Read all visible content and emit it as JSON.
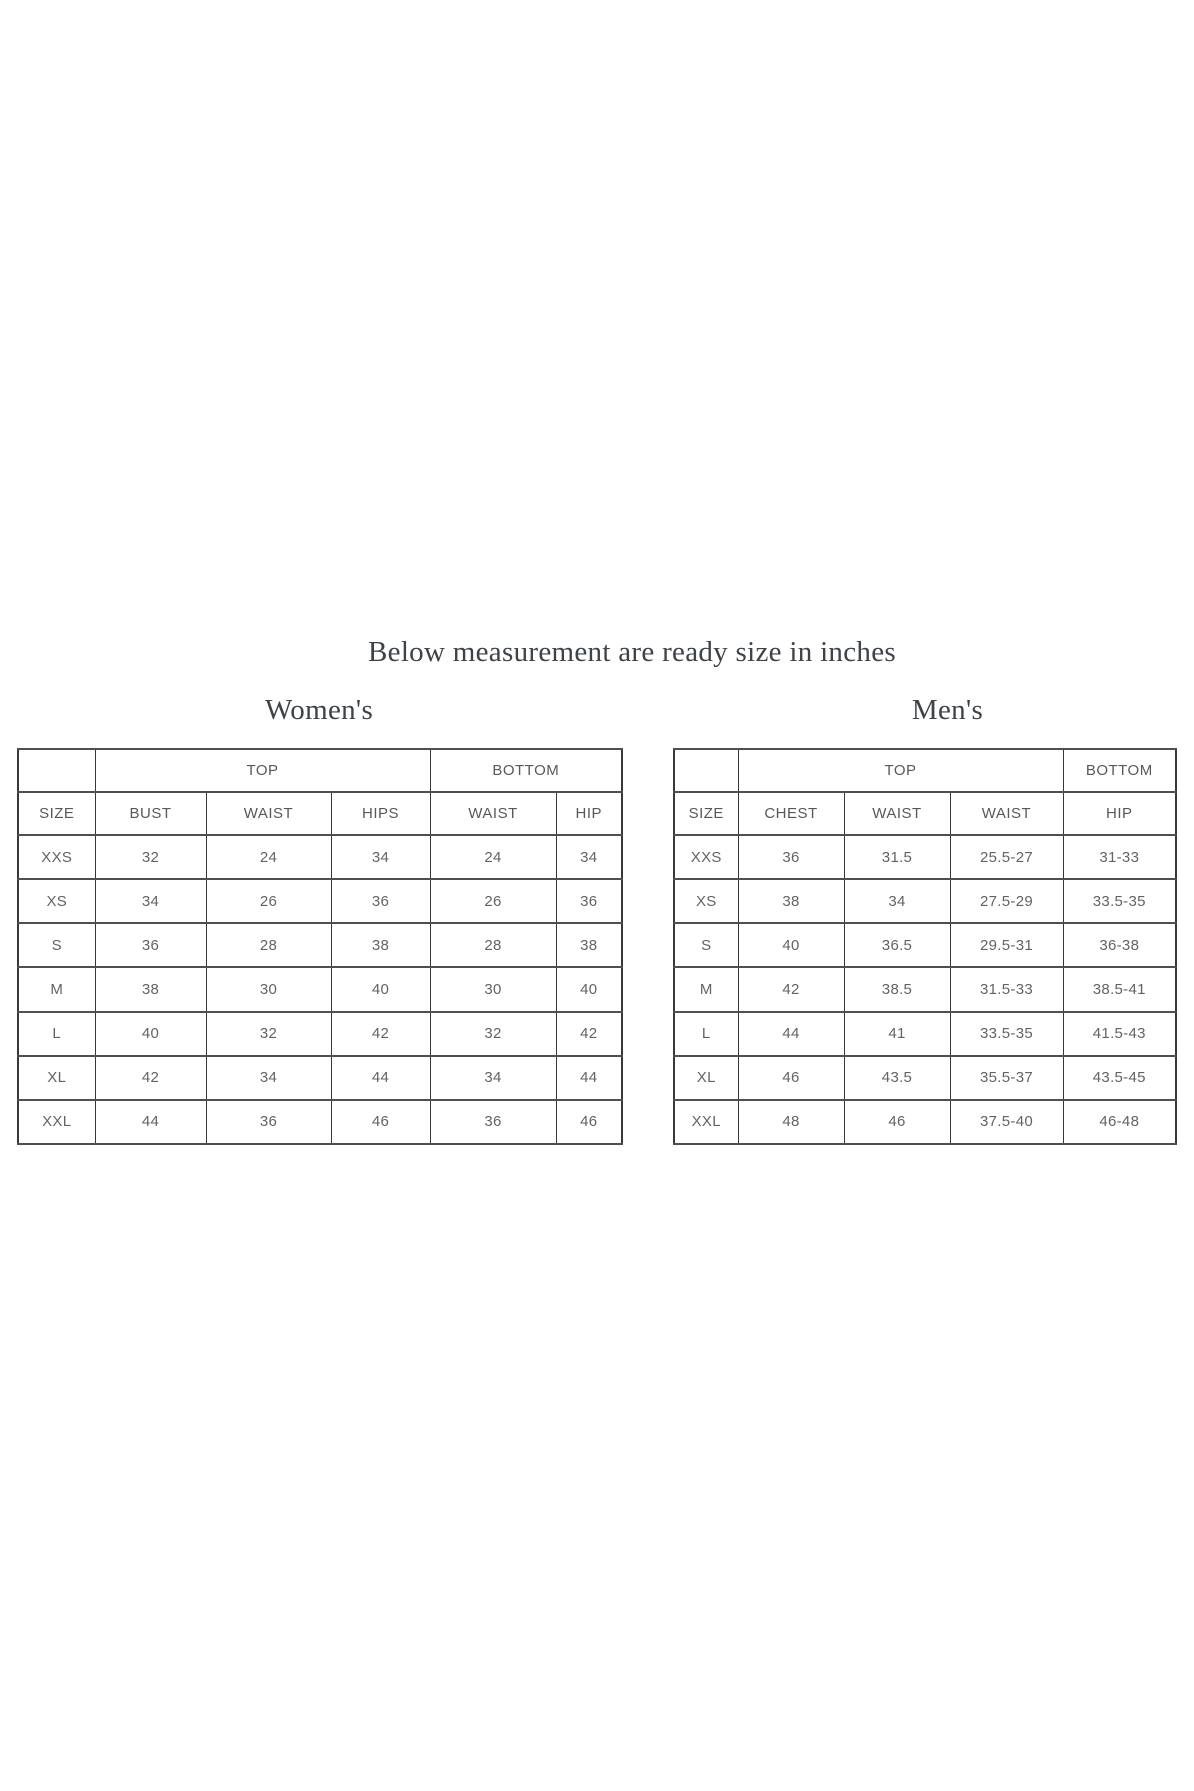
{
  "page": {
    "title": "Below measurement are ready size in inches"
  },
  "colors": {
    "background": "#ffffff",
    "heading_text": "#3d4348",
    "table_text": "#636363",
    "table_border": "#383838"
  },
  "women": {
    "heading": "Women's",
    "group_headers": {
      "top": "TOP",
      "bottom": "BOTTOM"
    },
    "columns": [
      "SIZE",
      "BUST",
      "WAIST",
      "HIPS",
      "WAIST",
      "HIP"
    ],
    "rows": [
      {
        "size": "XXS",
        "values": [
          "32",
          "24",
          "34",
          "24",
          "34"
        ]
      },
      {
        "size": "XS",
        "values": [
          "34",
          "26",
          "36",
          "26",
          "36"
        ]
      },
      {
        "size": "S",
        "values": [
          "36",
          "28",
          "38",
          "28",
          "38"
        ]
      },
      {
        "size": "M",
        "values": [
          "38",
          "30",
          "40",
          "30",
          "40"
        ]
      },
      {
        "size": "L",
        "values": [
          "40",
          "32",
          "42",
          "32",
          "42"
        ]
      },
      {
        "size": "XL",
        "values": [
          "42",
          "34",
          "44",
          "34",
          "44"
        ]
      },
      {
        "size": "XXL",
        "values": [
          "44",
          "36",
          "46",
          "36",
          "46"
        ]
      }
    ]
  },
  "men": {
    "heading": "Men's",
    "group_headers": {
      "top": "TOP",
      "bottom": "BOTTOM"
    },
    "columns": [
      "SIZE",
      "CHEST",
      "WAIST",
      "WAIST",
      "HIP"
    ],
    "rows": [
      {
        "size": "XXS",
        "values": [
          "36",
          "31.5",
          "25.5-27",
          "31-33"
        ]
      },
      {
        "size": "XS",
        "values": [
          "38",
          "34",
          "27.5-29",
          "33.5-35"
        ]
      },
      {
        "size": "S",
        "values": [
          "40",
          "36.5",
          "29.5-31",
          "36-38"
        ]
      },
      {
        "size": "M",
        "values": [
          "42",
          "38.5",
          "31.5-33",
          "38.5-41"
        ]
      },
      {
        "size": "L",
        "values": [
          "44",
          "41",
          "33.5-35",
          "41.5-43"
        ]
      },
      {
        "size": "XL",
        "values": [
          "46",
          "43.5",
          "35.5-37",
          "43.5-45"
        ]
      },
      {
        "size": "XXL",
        "values": [
          "48",
          "46",
          "37.5-40",
          "46-48"
        ]
      }
    ]
  }
}
